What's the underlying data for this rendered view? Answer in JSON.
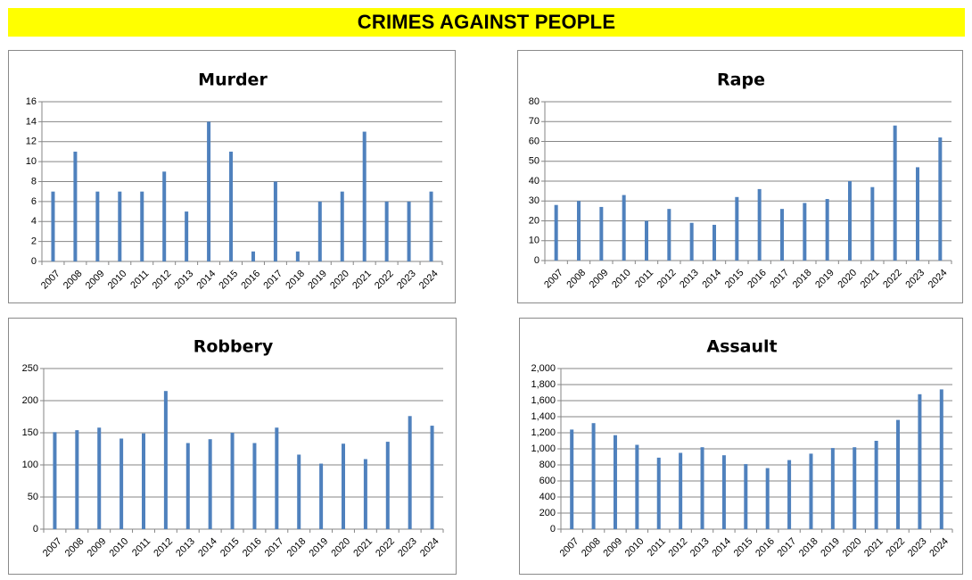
{
  "page": {
    "title": "CRIMES AGAINST PEOPLE"
  },
  "colors": {
    "banner": "#ffff00",
    "bar": "#4f81bd",
    "grid": "#868686"
  },
  "chart_data": [
    {
      "type": "bar",
      "title": "Murder",
      "categories": [
        "2007",
        "2008",
        "2009",
        "2010",
        "2011",
        "2012",
        "2013",
        "2014",
        "2015",
        "2016",
        "2017",
        "2018",
        "2019",
        "2020",
        "2021",
        "2022",
        "2023",
        "2024"
      ],
      "values": [
        7,
        11,
        7,
        7,
        7,
        9,
        5,
        14,
        11,
        1,
        8,
        1,
        6,
        7,
        13,
        6,
        6,
        7
      ],
      "ylim": [
        0,
        16
      ],
      "yticks": [
        "0",
        "2",
        "4",
        "6",
        "8",
        "10",
        "12",
        "14",
        "16"
      ],
      "grid": true,
      "legend": "none"
    },
    {
      "type": "bar",
      "title": "Rape",
      "categories": [
        "2007",
        "2008",
        "2009",
        "2010",
        "2011",
        "2012",
        "2013",
        "2014",
        "2015",
        "2016",
        "2017",
        "2018",
        "2019",
        "2020",
        "2021",
        "2022",
        "2023",
        "2024"
      ],
      "values": [
        28,
        30,
        27,
        33,
        20,
        26,
        19,
        18,
        32,
        36,
        26,
        29,
        31,
        40,
        37,
        68,
        47,
        62
      ],
      "ylim": [
        0,
        80
      ],
      "yticks": [
        "0",
        "10",
        "20",
        "30",
        "40",
        "50",
        "60",
        "70",
        "80"
      ],
      "grid": true,
      "legend": "none"
    },
    {
      "type": "bar",
      "title": "Robbery",
      "categories": [
        "2007",
        "2008",
        "2009",
        "2010",
        "2011",
        "2012",
        "2013",
        "2014",
        "2015",
        "2016",
        "2017",
        "2018",
        "2019",
        "2020",
        "2021",
        "2022",
        "2023",
        "2024"
      ],
      "values": [
        151,
        154,
        158,
        141,
        149,
        215,
        134,
        140,
        150,
        134,
        158,
        116,
        102,
        133,
        109,
        136,
        176,
        161
      ],
      "ylim": [
        0,
        250
      ],
      "yticks": [
        "0",
        "50",
        "100",
        "150",
        "200",
        "250"
      ],
      "grid": true,
      "legend": "none"
    },
    {
      "type": "bar",
      "title": "Assault",
      "categories": [
        "2007",
        "2008",
        "2009",
        "2010",
        "2011",
        "2012",
        "2013",
        "2014",
        "2015",
        "2016",
        "2017",
        "2018",
        "2019",
        "2020",
        "2021",
        "2022",
        "2023",
        "2024"
      ],
      "values": [
        1240,
        1320,
        1170,
        1050,
        890,
        950,
        1020,
        920,
        810,
        760,
        860,
        940,
        1010,
        1020,
        1100,
        1360,
        1680,
        1740
      ],
      "ylim": [
        0,
        2000
      ],
      "yticks": [
        "0",
        "200",
        "400",
        "600",
        "800",
        "1,000",
        "1,200",
        "1,400",
        "1,600",
        "1,800",
        "2,000"
      ],
      "grid": true,
      "legend": "none"
    }
  ]
}
